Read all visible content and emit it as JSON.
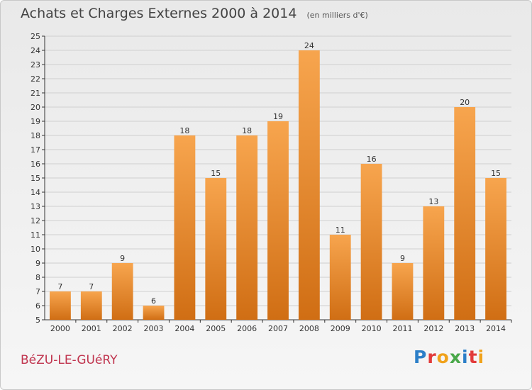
{
  "header": {
    "title": "Achats et Charges Externes 2000 à 2014",
    "subtitle": "(en milliers d'€)"
  },
  "footer": {
    "commune": "BéZU-LE-GUéRY",
    "logo_text": "Proxiti"
  },
  "colors": {
    "bar_light": "#f7a54e",
    "bar_dark": "#d06e14",
    "grid": "#cfcfcf",
    "axis": "#333333",
    "label": "#333333"
  },
  "chart_data": {
    "type": "bar",
    "categories": [
      "2000",
      "2001",
      "2002",
      "2003",
      "2004",
      "2005",
      "2006",
      "2007",
      "2008",
      "2009",
      "2010",
      "2011",
      "2012",
      "2013",
      "2014"
    ],
    "values": [
      7,
      7,
      9,
      6,
      18,
      15,
      18,
      19,
      24,
      11,
      16,
      9,
      13,
      20,
      15
    ],
    "title": "Achats et Charges Externes 2000 à 2014",
    "subtitle": "(en milliers d'€)",
    "ylim": [
      5,
      25
    ],
    "yticks": [
      5,
      6,
      7,
      8,
      9,
      10,
      11,
      12,
      13,
      14,
      15,
      16,
      17,
      18,
      19,
      20,
      21,
      22,
      23,
      24,
      25
    ],
    "grid": true,
    "legend": "none"
  }
}
